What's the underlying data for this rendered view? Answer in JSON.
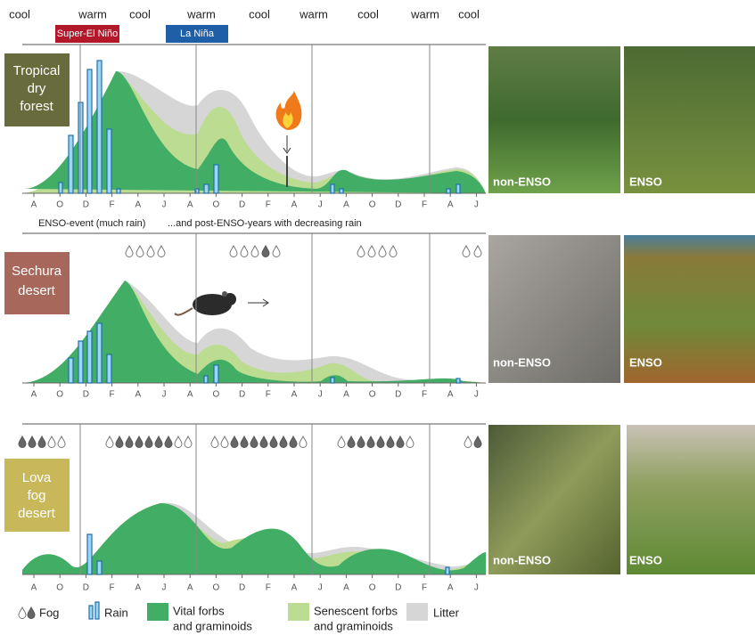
{
  "top_labels": [
    "cool",
    "warm",
    "cool",
    "warm",
    "cool",
    "warm",
    "cool",
    "warm",
    "cool"
  ],
  "events": [
    "Super-El Niño",
    "La Niña"
  ],
  "panels": [
    {
      "label": [
        "Tropical",
        "dry",
        "forest"
      ]
    },
    {
      "label": [
        "Sechura",
        "desert"
      ]
    },
    {
      "label": [
        "Lova",
        "fog",
        "desert"
      ]
    }
  ],
  "months": [
    "A",
    "O",
    "D",
    "F",
    "A",
    "J",
    "A",
    "O",
    "D",
    "F",
    "A",
    "J",
    "A",
    "O",
    "D",
    "F",
    "A",
    "J"
  ],
  "captions": [
    "ENSO-event (much rain)",
    "...and post-ENSO-years with decreasing rain"
  ],
  "photo_labels": [
    "non-ENSO",
    "ENSO"
  ],
  "legend": {
    "fog": "Fog",
    "rain": "Rain",
    "vital": [
      "Vital forbs",
      "and graminoids"
    ],
    "senescent": [
      "Senescent forbs",
      "and graminoids"
    ],
    "litter": "Litter"
  }
}
